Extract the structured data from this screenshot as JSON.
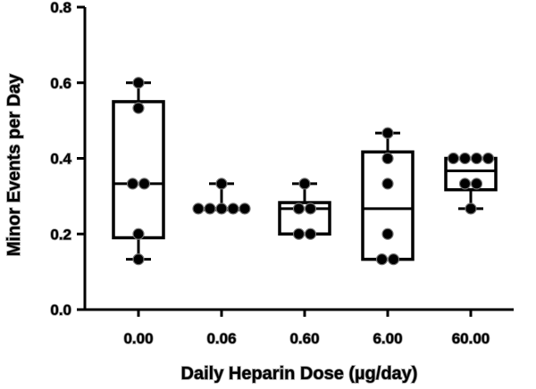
{
  "chart_data": {
    "type": "box",
    "xlabel": "Daily Heparin Dose (µg/day)",
    "ylabel": "Minor Events per Day",
    "ylim": [
      0,
      0.8
    ],
    "yticks": [
      "0.0",
      "0.2",
      "0.4",
      "0.6",
      "0.8"
    ],
    "categories": [
      "0.00",
      "0.06",
      "0.60",
      "6.00",
      "60.00"
    ],
    "boxes": [
      {
        "min": 0.133,
        "q1": 0.19,
        "median": 0.333,
        "q3": 0.55,
        "max": 0.6,
        "points": [
          0.6,
          0.533,
          0.333,
          0.333,
          0.2,
          0.133
        ]
      },
      {
        "min": 0.267,
        "q1": 0.267,
        "median": 0.267,
        "q3": 0.267,
        "max": 0.333,
        "points": [
          0.333,
          0.267,
          0.267,
          0.267,
          0.267,
          0.267
        ]
      },
      {
        "min": 0.2,
        "q1": 0.2,
        "median": 0.267,
        "q3": 0.283,
        "max": 0.333,
        "points": [
          0.333,
          0.267,
          0.267,
          0.2,
          0.2
        ]
      },
      {
        "min": 0.133,
        "q1": 0.133,
        "median": 0.267,
        "q3": 0.417,
        "max": 0.467,
        "points": [
          0.467,
          0.4,
          0.333,
          0.2,
          0.133,
          0.133
        ]
      },
      {
        "min": 0.267,
        "q1": 0.317,
        "median": 0.367,
        "q3": 0.4,
        "max": 0.4,
        "points": [
          0.4,
          0.4,
          0.4,
          0.4,
          0.333,
          0.333,
          0.267
        ]
      }
    ],
    "grid": false,
    "legend": "none"
  }
}
